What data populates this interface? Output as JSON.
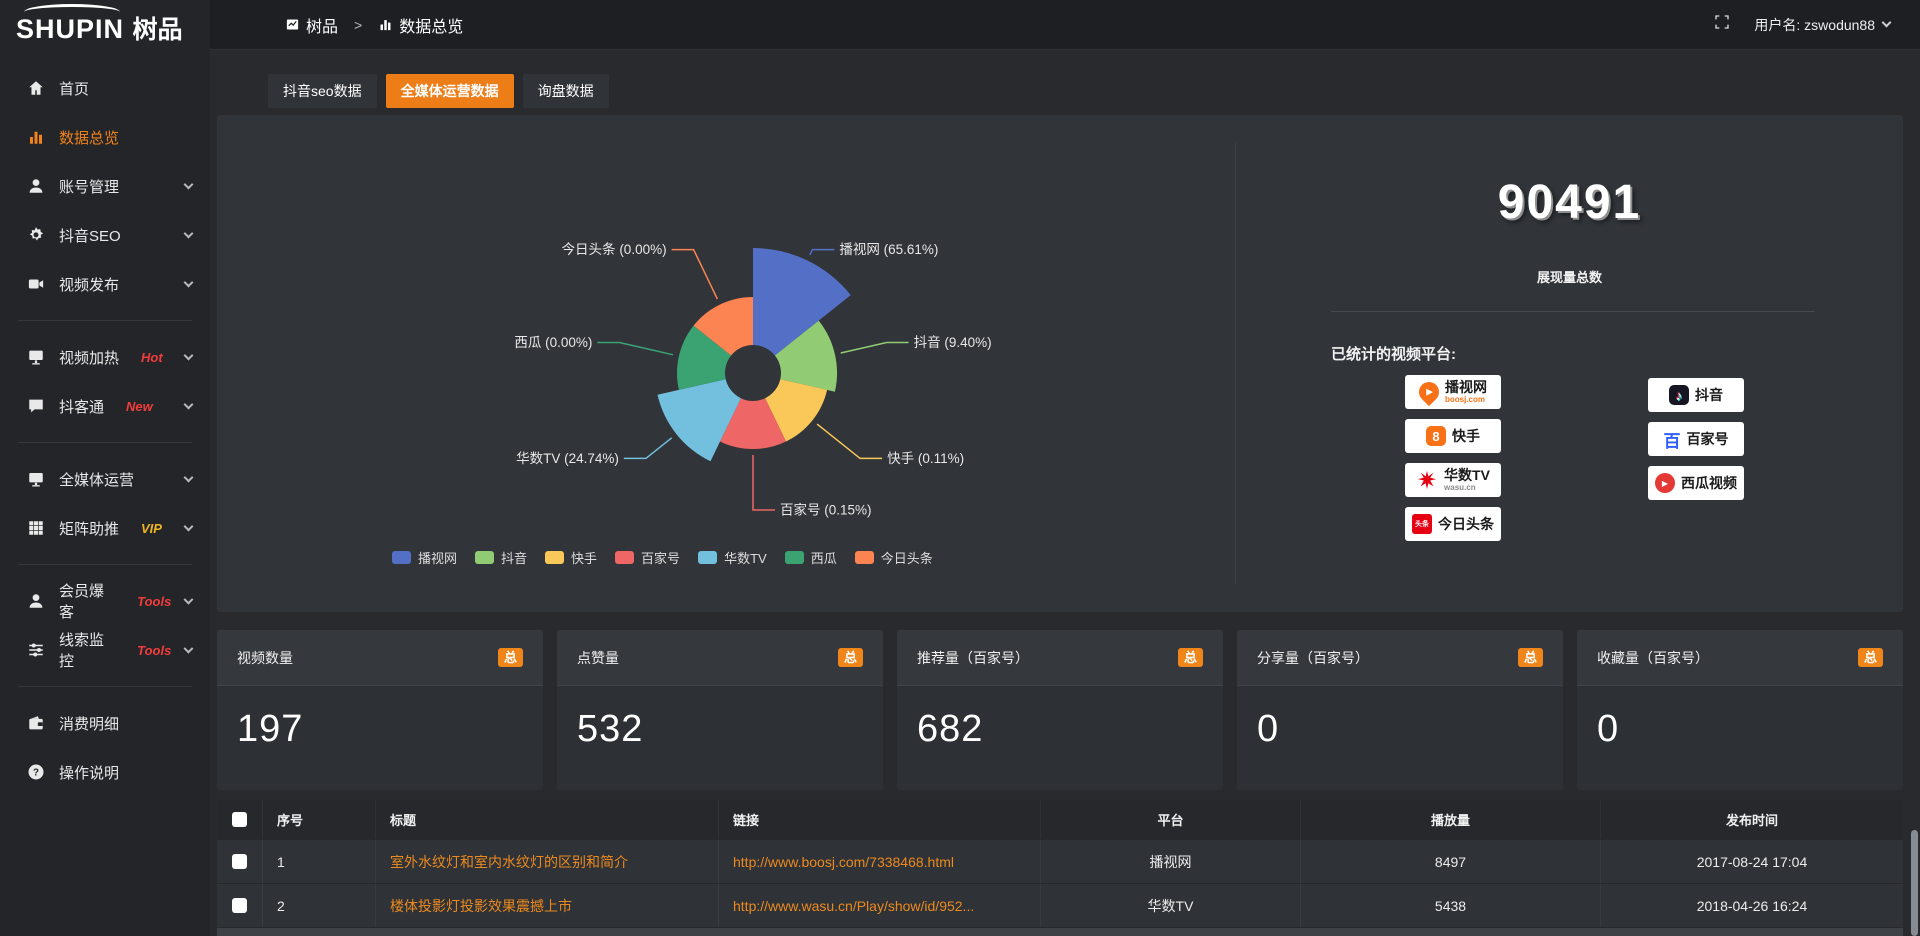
{
  "brand": {
    "name_en": "SHUPIN",
    "name_cn": "树品"
  },
  "topbar": {
    "breadcrumb_root": "树品",
    "breadcrumb_sep": ">",
    "breadcrumb_current": "数据总览",
    "username": "用户名: zswodun88"
  },
  "sidebar": {
    "items": [
      {
        "label": "首页",
        "icon": "home",
        "active": false
      },
      {
        "label": "数据总览",
        "icon": "chart",
        "active": true
      },
      {
        "label": "账号管理",
        "icon": "user",
        "chevron": true
      },
      {
        "label": "抖音SEO",
        "icon": "gear",
        "chevron": true
      },
      {
        "label": "视频发布",
        "icon": "video",
        "chevron": true,
        "divider_after": true
      },
      {
        "label": "视频加热",
        "icon": "monitor-play",
        "chevron": true,
        "tag": "Hot",
        "tag_color": "#f23c3c"
      },
      {
        "label": "抖客通",
        "icon": "chat",
        "chevron": true,
        "tag": "New",
        "tag_color": "#f23c3c",
        "divider_after": true
      },
      {
        "label": "全媒体运营",
        "icon": "monitor",
        "chevron": true
      },
      {
        "label": "矩阵助推",
        "icon": "grid",
        "chevron": true,
        "tag": "VIP",
        "tag_color": "#f0b41e",
        "divider_after": true
      },
      {
        "label": "会员爆客",
        "icon": "user",
        "chevron": true,
        "tag": "Tools",
        "tag_color": "#f23c3c"
      },
      {
        "label": "线索监控",
        "icon": "sliders",
        "chevron": true,
        "tag": "Tools",
        "tag_color": "#f23c3c",
        "divider_after": true
      },
      {
        "label": "消费明细",
        "icon": "wallet"
      },
      {
        "label": "操作说明",
        "icon": "question"
      }
    ]
  },
  "tabs": [
    {
      "label": "抖音seo数据",
      "active": false
    },
    {
      "label": "全媒体运营数据",
      "active": true
    },
    {
      "label": "询盘数据",
      "active": false
    }
  ],
  "chart_data": {
    "type": "pie",
    "rose_type": "area",
    "equal_angles": true,
    "inner_radius_px": 28,
    "label_format": "{name} ({percent}%)",
    "legend_position": "bottom",
    "slices": [
      {
        "name": "播视网",
        "value": 65.61,
        "color": "#5470c6",
        "radius": 125
      },
      {
        "name": "抖音",
        "value": 9.4,
        "color": "#91cc75",
        "radius": 84
      },
      {
        "name": "快手",
        "value": 0.11,
        "color": "#fac858",
        "radius": 76
      },
      {
        "name": "百家号",
        "value": 0.15,
        "color": "#ee6666",
        "radius": 76
      },
      {
        "name": "华数TV",
        "value": 24.74,
        "color": "#73c0de",
        "radius": 98
      },
      {
        "name": "西瓜",
        "value": 0.0,
        "color": "#3ba272",
        "radius": 76
      },
      {
        "name": "今日头条",
        "value": 0.0,
        "color": "#fc8452",
        "radius": 76
      }
    ]
  },
  "summary": {
    "total_value": "90491",
    "total_label": "展现量总数",
    "platforms_title": "已统计的视频平台:",
    "platforms_left": [
      {
        "name": "播视网",
        "sub": "boosj.com",
        "icon": "boosj"
      },
      {
        "name": "快手",
        "icon": "kuaishou"
      },
      {
        "name": "华数TV",
        "sub": "wasu.cn",
        "icon": "wasu"
      },
      {
        "name": "今日头条",
        "icon": "toutiao"
      }
    ],
    "platforms_right": [
      {
        "name": "抖音",
        "icon": "douyin"
      },
      {
        "name": "百家号",
        "icon": "baijia"
      },
      {
        "name": "西瓜视频",
        "icon": "xigua"
      }
    ]
  },
  "stats": {
    "badge": "总",
    "cards": [
      {
        "label": "视频数量",
        "value": "197"
      },
      {
        "label": "点赞量",
        "value": "532"
      },
      {
        "label": "推荐量（百家号）",
        "value": "682"
      },
      {
        "label": "分享量（百家号）",
        "value": "0"
      },
      {
        "label": "收藏量（百家号）",
        "value": "0"
      }
    ]
  },
  "table": {
    "columns": [
      "",
      "序号",
      "标题",
      "链接",
      "平台",
      "播放量",
      "发布时间"
    ],
    "rows": [
      {
        "index": "1",
        "title": "室外水纹灯和室内水纹灯的区别和简介",
        "link": "http://www.boosj.com/7338468.html",
        "platform": "播视网",
        "plays": "8497",
        "published": "2017-08-24 17:04"
      },
      {
        "index": "2",
        "title": "楼体投影灯投影效果震撼上市",
        "link": "http://www.wasu.cn/Play/show/id/952...",
        "platform": "华数TV",
        "plays": "5438",
        "published": "2018-04-26 16:24"
      }
    ]
  }
}
